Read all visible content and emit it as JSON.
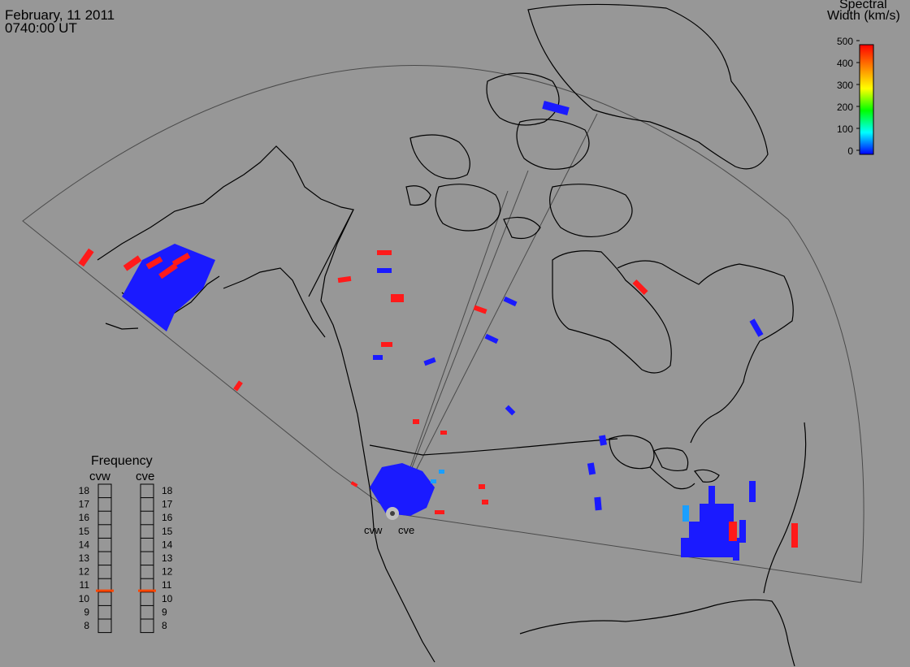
{
  "header": {
    "date": "February, 11 2011",
    "time": "0740:00 UT"
  },
  "legend": {
    "title_line1": "Spectral",
    "title_line2": "Width (km/s)",
    "ticks": [
      "500",
      "400",
      "300",
      "200",
      "100",
      "0"
    ],
    "colors": [
      "#ff0000",
      "#ff8000",
      "#ffff00",
      "#00ff00",
      "#00ffff",
      "#0000ff"
    ]
  },
  "frequency": {
    "title": "Frequency",
    "radars": [
      "cvw",
      "cve"
    ],
    "scale": [
      "18",
      "17",
      "16",
      "15",
      "14",
      "13",
      "12",
      "11",
      "10",
      "9",
      "8"
    ],
    "cvw_value_mhz": 10.6,
    "cve_value_mhz": 10.6,
    "marker_color": "#ff4500"
  },
  "radars": {
    "west_label": "cvw",
    "east_label": "cve"
  },
  "colors": {
    "background": "#979797",
    "coastline": "#000000",
    "field_of_view": "#4a4a4a",
    "low_width": "#1a1aff",
    "high_width": "#ff1a1a",
    "mid_width": "#1a9fff"
  }
}
